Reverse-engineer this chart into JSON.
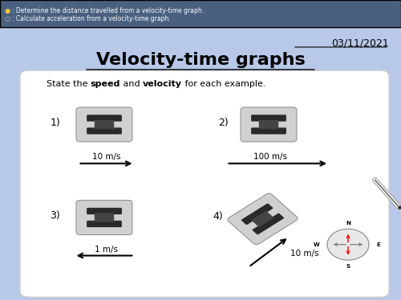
{
  "bg_color": "#b8c8e8",
  "header_color": "#4a6080",
  "header_text1": ": Determine the distance travelled from a velocity-time graph.",
  "header_text2": ": Calculate acceleration from a velocity-time graph.",
  "date": "03/11/2021",
  "title": "Velocity-time graphs",
  "card_color": "#ffffff",
  "subtitle_plain1": "State the ",
  "subtitle_bold1": "speed",
  "subtitle_plain2": " and ",
  "subtitle_bold2": "velocity",
  "subtitle_plain3": " for each example.",
  "label1": "1)",
  "label2": "2)",
  "label3": "3)",
  "label4": "4)",
  "speed1": "10 m/s",
  "speed2": "100 m/s",
  "speed3": "1 m/s",
  "speed4": "10 m/s",
  "bullet1_color": "#f0c040",
  "bullet2_color": "#c0c0c0",
  "text_color": "black",
  "header_text_color": "white",
  "compass_face": "#e8e8e8",
  "compass_edge": "#888888",
  "compass_needle_color": "red",
  "compass_spoke_color": "#888888"
}
